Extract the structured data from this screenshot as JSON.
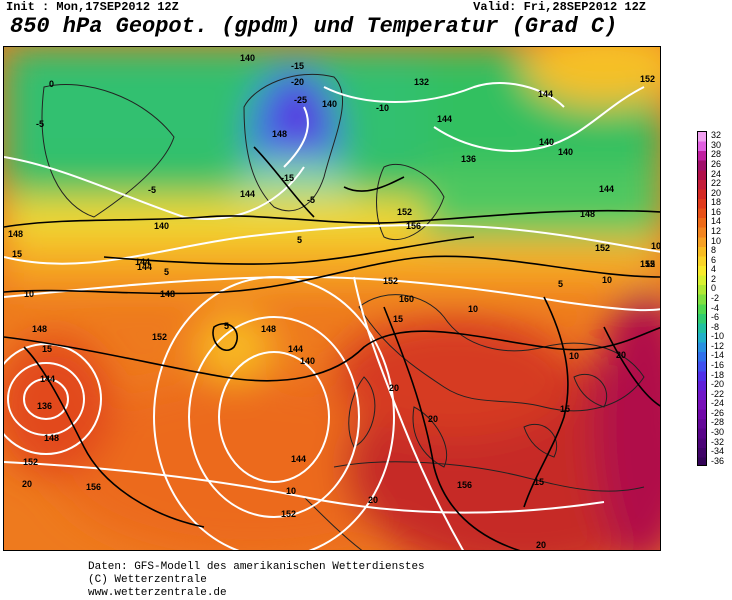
{
  "header": {
    "init": "Init : Mon,17SEP2012  12Z",
    "valid": "Valid: Fri,28SEP2012  12Z",
    "title": "850 hPa Geopot. (gpdm) und Temperatur (Grad C)"
  },
  "legend": {
    "labels": [
      "32",
      "30",
      "28",
      "26",
      "24",
      "22",
      "20",
      "18",
      "16",
      "14",
      "12",
      "10",
      "8",
      "6",
      "4",
      "2",
      "0",
      "-2",
      "-4",
      "-6",
      "-8",
      "-10",
      "-12",
      "-14",
      "-16",
      "-18",
      "-20",
      "-22",
      "-24",
      "-26",
      "-28",
      "-30",
      "-32",
      "-34",
      "-36"
    ],
    "colors": [
      "#f0a0f0",
      "#e060e0",
      "#c020a0",
      "#a0106a",
      "#b0104a",
      "#c41e3a",
      "#d42a24",
      "#e03a1c",
      "#e85018",
      "#ee6a18",
      "#f28420",
      "#f6a024",
      "#f8bc22",
      "#fad428",
      "#f8ea2c",
      "#d8f030",
      "#b0e834",
      "#80e040",
      "#50d850",
      "#30cc70",
      "#20c0a0",
      "#20b0c8",
      "#2890e0",
      "#3070ea",
      "#4050ee",
      "#5030e8",
      "#6020d8",
      "#7018c8",
      "#7810b8",
      "#7008a8",
      "#640898",
      "#580488",
      "#4c0478",
      "#400468",
      "#340458"
    ]
  },
  "map": {
    "geopot_labels": [
      "140",
      "132",
      "144",
      "152",
      "148",
      "144",
      "140",
      "144",
      "136",
      "140",
      "140",
      "148",
      "144",
      "144",
      "152",
      "156",
      "148",
      "152",
      "152",
      "140",
      "144",
      "148",
      "140",
      "144",
      "148",
      "160",
      "152",
      "148",
      "136",
      "144",
      "148",
      "152",
      "144",
      "152",
      "156",
      "152",
      "156"
    ],
    "temp_labels": [
      "-15",
      "-20",
      "-25",
      "-10",
      "-15",
      "-5",
      "-5",
      "10",
      "5",
      "-5",
      "5",
      "5",
      "0",
      "5",
      "10",
      "10",
      "15",
      "15",
      "15",
      "10",
      "10",
      "20",
      "20",
      "15",
      "20",
      "20",
      "10",
      "15",
      "20",
      "15",
      "20"
    ]
  },
  "footer": {
    "line1": "Daten: GFS-Modell des amerikanischen Wetterdienstes",
    "line2": "(C) Wetterzentrale",
    "line3": "www.wetterzentrale.de"
  }
}
